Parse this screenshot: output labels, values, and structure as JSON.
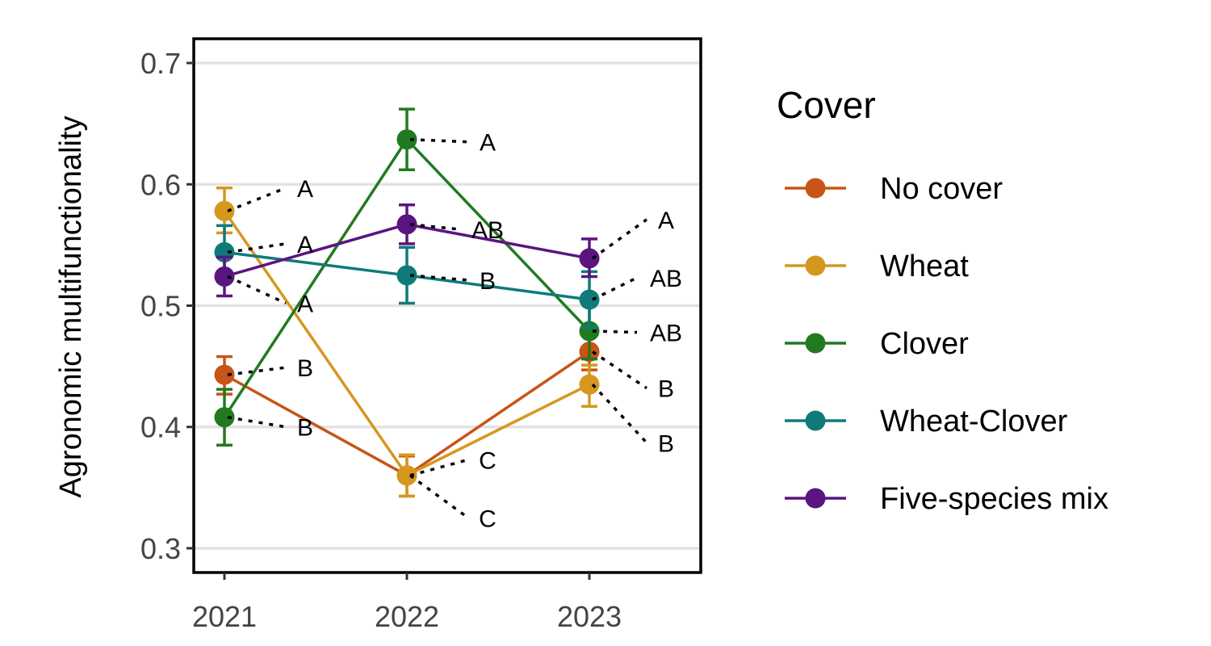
{
  "chart_data": {
    "type": "line",
    "xlabel": "",
    "ylabel": "Agronomic multifunctionality",
    "x": [
      "2021",
      "2022",
      "2023"
    ],
    "ylim": [
      0.28,
      0.72
    ],
    "yticks": [
      0.3,
      0.4,
      0.5,
      0.6,
      0.7
    ],
    "ytick_labels": [
      "0.3",
      "0.4",
      "0.5",
      "0.6",
      "0.7"
    ],
    "grid": "horizontal major lines",
    "legend": {
      "title": "Cover",
      "placement": "right"
    },
    "series": [
      {
        "name": "No cover",
        "color": "#C85417",
        "values": [
          0.443,
          0.36,
          0.462
        ],
        "err_low": [
          0.427,
          0.343,
          0.447
        ],
        "err_high": [
          0.458,
          0.376,
          0.478
        ],
        "letters": [
          {
            "text": "B",
            "y": 0.449
          },
          {
            "text": "C",
            "y": 0.373
          },
          {
            "text": "B",
            "y": 0.432
          }
        ]
      },
      {
        "name": "Wheat",
        "color": "#D6971F",
        "values": [
          0.578,
          0.36,
          0.435
        ],
        "err_low": [
          0.56,
          0.343,
          0.417
        ],
        "err_high": [
          0.597,
          0.377,
          0.451
        ],
        "letters": [
          {
            "text": "A",
            "y": 0.597
          },
          {
            "text": "C",
            "y": 0.325
          },
          {
            "text": "B",
            "y": 0.387
          }
        ]
      },
      {
        "name": "Clover",
        "color": "#217A1F",
        "values": [
          0.408,
          0.637,
          0.479
        ],
        "err_low": [
          0.385,
          0.612,
          0.456
        ],
        "err_high": [
          0.431,
          0.662,
          0.502
        ],
        "letters": [
          {
            "text": "B",
            "y": 0.4
          },
          {
            "text": "A",
            "y": 0.635
          },
          {
            "text": "AB",
            "y": 0.478
          }
        ]
      },
      {
        "name": "Wheat-Clover",
        "color": "#0F7A7A",
        "values": [
          0.544,
          0.525,
          0.505
        ],
        "err_low": [
          0.522,
          0.502,
          0.482
        ],
        "err_high": [
          0.566,
          0.548,
          0.528
        ],
        "letters": [
          {
            "text": "A",
            "y": 0.551
          },
          {
            "text": "B",
            "y": 0.521
          },
          {
            "text": "AB",
            "y": 0.523
          }
        ]
      },
      {
        "name": "Five-species mix",
        "color": "#5A1580",
        "values": [
          0.524,
          0.567,
          0.539
        ],
        "err_low": [
          0.508,
          0.551,
          0.524
        ],
        "err_high": [
          0.54,
          0.583,
          0.555
        ],
        "letters": [
          {
            "text": "A",
            "y": 0.502
          },
          {
            "text": "AB",
            "y": 0.563
          },
          {
            "text": "A",
            "y": 0.571
          }
        ]
      }
    ]
  }
}
